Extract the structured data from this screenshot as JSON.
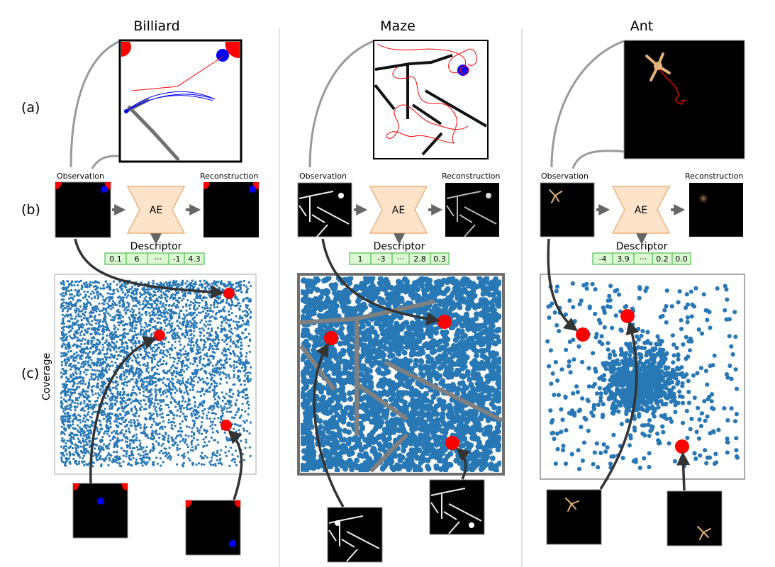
{
  "figure": {
    "panels": [
      {
        "key": "billiard",
        "title": "Billiard",
        "descriptor": [
          "0.1",
          "6",
          "···",
          "-1",
          "4.3"
        ]
      },
      {
        "key": "maze",
        "title": "Maze",
        "descriptor": [
          "1",
          "-3",
          "···",
          "2.8",
          "0.3"
        ]
      },
      {
        "key": "ant",
        "title": "Ant",
        "descriptor": [
          "-4",
          "3.9",
          "···",
          "0.2",
          "0.0"
        ]
      }
    ],
    "row_labels": {
      "a": "(a)",
      "b": "(b)",
      "c": "(c)"
    },
    "labels": {
      "observation": "Observation",
      "reconstruction": "Reconstruction",
      "ae": "AE",
      "descriptor": "Descriptor",
      "coverage": "Coverage"
    },
    "colors": {
      "points": "#2878b5",
      "target": "#ff0000",
      "ball": "#0000ff",
      "wall": "#707070",
      "ae_fill": "#fde3c9",
      "ae_stroke": "#f0b27a",
      "descriptor_fill": "#dbf8d3",
      "descriptor_stroke": "#33b233",
      "arrow": "#333333",
      "connector": "#999999"
    }
  }
}
